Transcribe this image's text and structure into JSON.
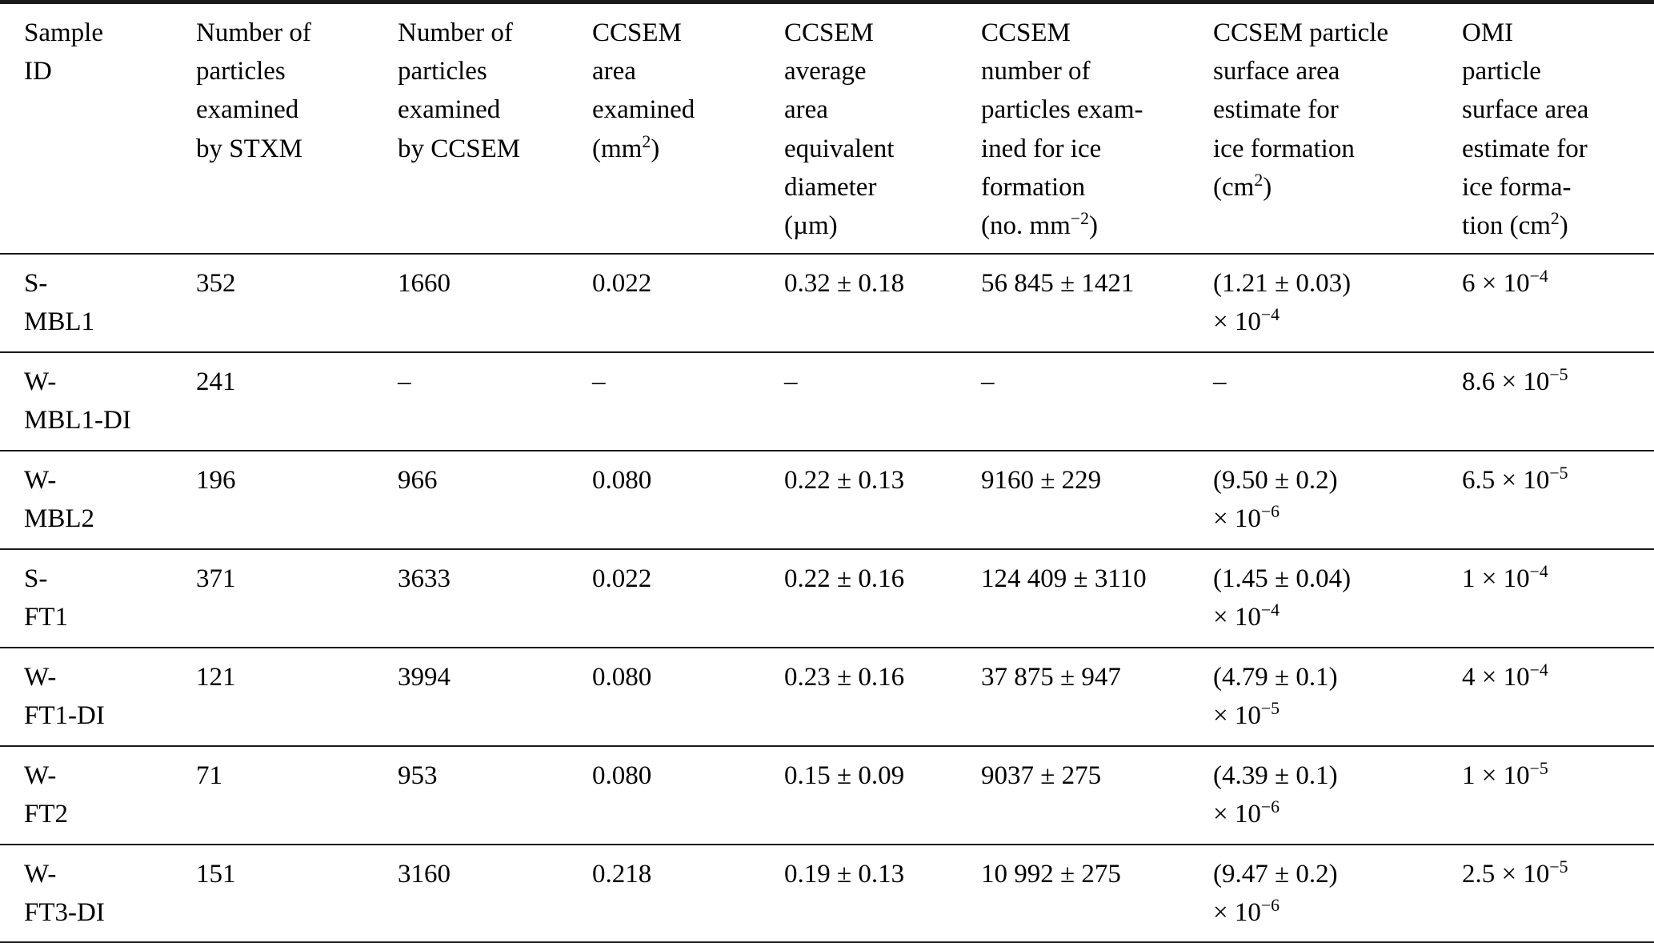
{
  "table": {
    "headers": [
      "Sample\nID",
      "Number of\nparticles\nexamined\nby STXM",
      "Number of\nparticles\nexamined\nby CCSEM",
      "CCSEM\narea\nexamined\n(mm^{2})",
      "CCSEM\naverage\narea\nequivalent\ndiameter\n(µm)",
      "CCSEM\nnumber of\nparticles exam-\nined for ice\nformation\n(no. mm^{−2})",
      "CCSEM particle\nsurface area\nestimate for\nice formation\n(cm^{2})",
      "OMI\nparticle\nsurface area\nestimate for\nice forma-\ntion (cm^{2})"
    ],
    "rows": [
      {
        "sample_id": "S-MBL1",
        "cells": [
          "S-\nMBL1",
          "352",
          "1660",
          "0.022",
          "0.32 ± 0.18",
          "56 845 ± 1421",
          "(1.21 ± 0.03)\n× 10^{−4}",
          "6 × 10^{−4}"
        ]
      },
      {
        "sample_id": "W-MBL1-DI",
        "cells": [
          "W-\nMBL1-DI",
          "241",
          "–",
          "–",
          "–",
          "–",
          "–",
          "8.6 × 10^{−5}"
        ]
      },
      {
        "sample_id": "W-MBL2",
        "cells": [
          "W-\nMBL2",
          "196",
          "966",
          "0.080",
          "0.22 ± 0.13",
          "9160 ± 229",
          "(9.50 ± 0.2)\n× 10^{−6}",
          "6.5 × 10^{−5}"
        ]
      },
      {
        "sample_id": "S-FT1",
        "cells": [
          "S-\nFT1",
          "371",
          "3633",
          "0.022",
          "0.22 ± 0.16",
          "124 409 ± 3110",
          "(1.45 ± 0.04)\n× 10^{−4}",
          "1 × 10^{−4}"
        ]
      },
      {
        "sample_id": "W-FT1-DI",
        "cells": [
          "W-\nFT1-DI",
          "121",
          "3994",
          "0.080",
          "0.23 ± 0.16",
          "37 875 ± 947",
          "(4.79 ± 0.1)\n× 10^{−5}",
          "4 × 10^{−4}"
        ]
      },
      {
        "sample_id": "W-FT2",
        "cells": [
          "W-\nFT2",
          "71",
          "953",
          "0.080",
          "0.15 ± 0.09",
          "9037 ± 275",
          "(4.39 ± 0.1)\n× 10^{−6}",
          "1 × 10^{−5}"
        ]
      },
      {
        "sample_id": "W-FT3-DI",
        "cells": [
          "W-\nFT3-DI",
          "151",
          "3160",
          "0.218",
          "0.19 ± 0.13",
          "10 992 ± 275",
          "(9.47 ± 0.2)\n× 10^{−6}",
          "2.5 × 10^{−5}"
        ]
      }
    ]
  }
}
